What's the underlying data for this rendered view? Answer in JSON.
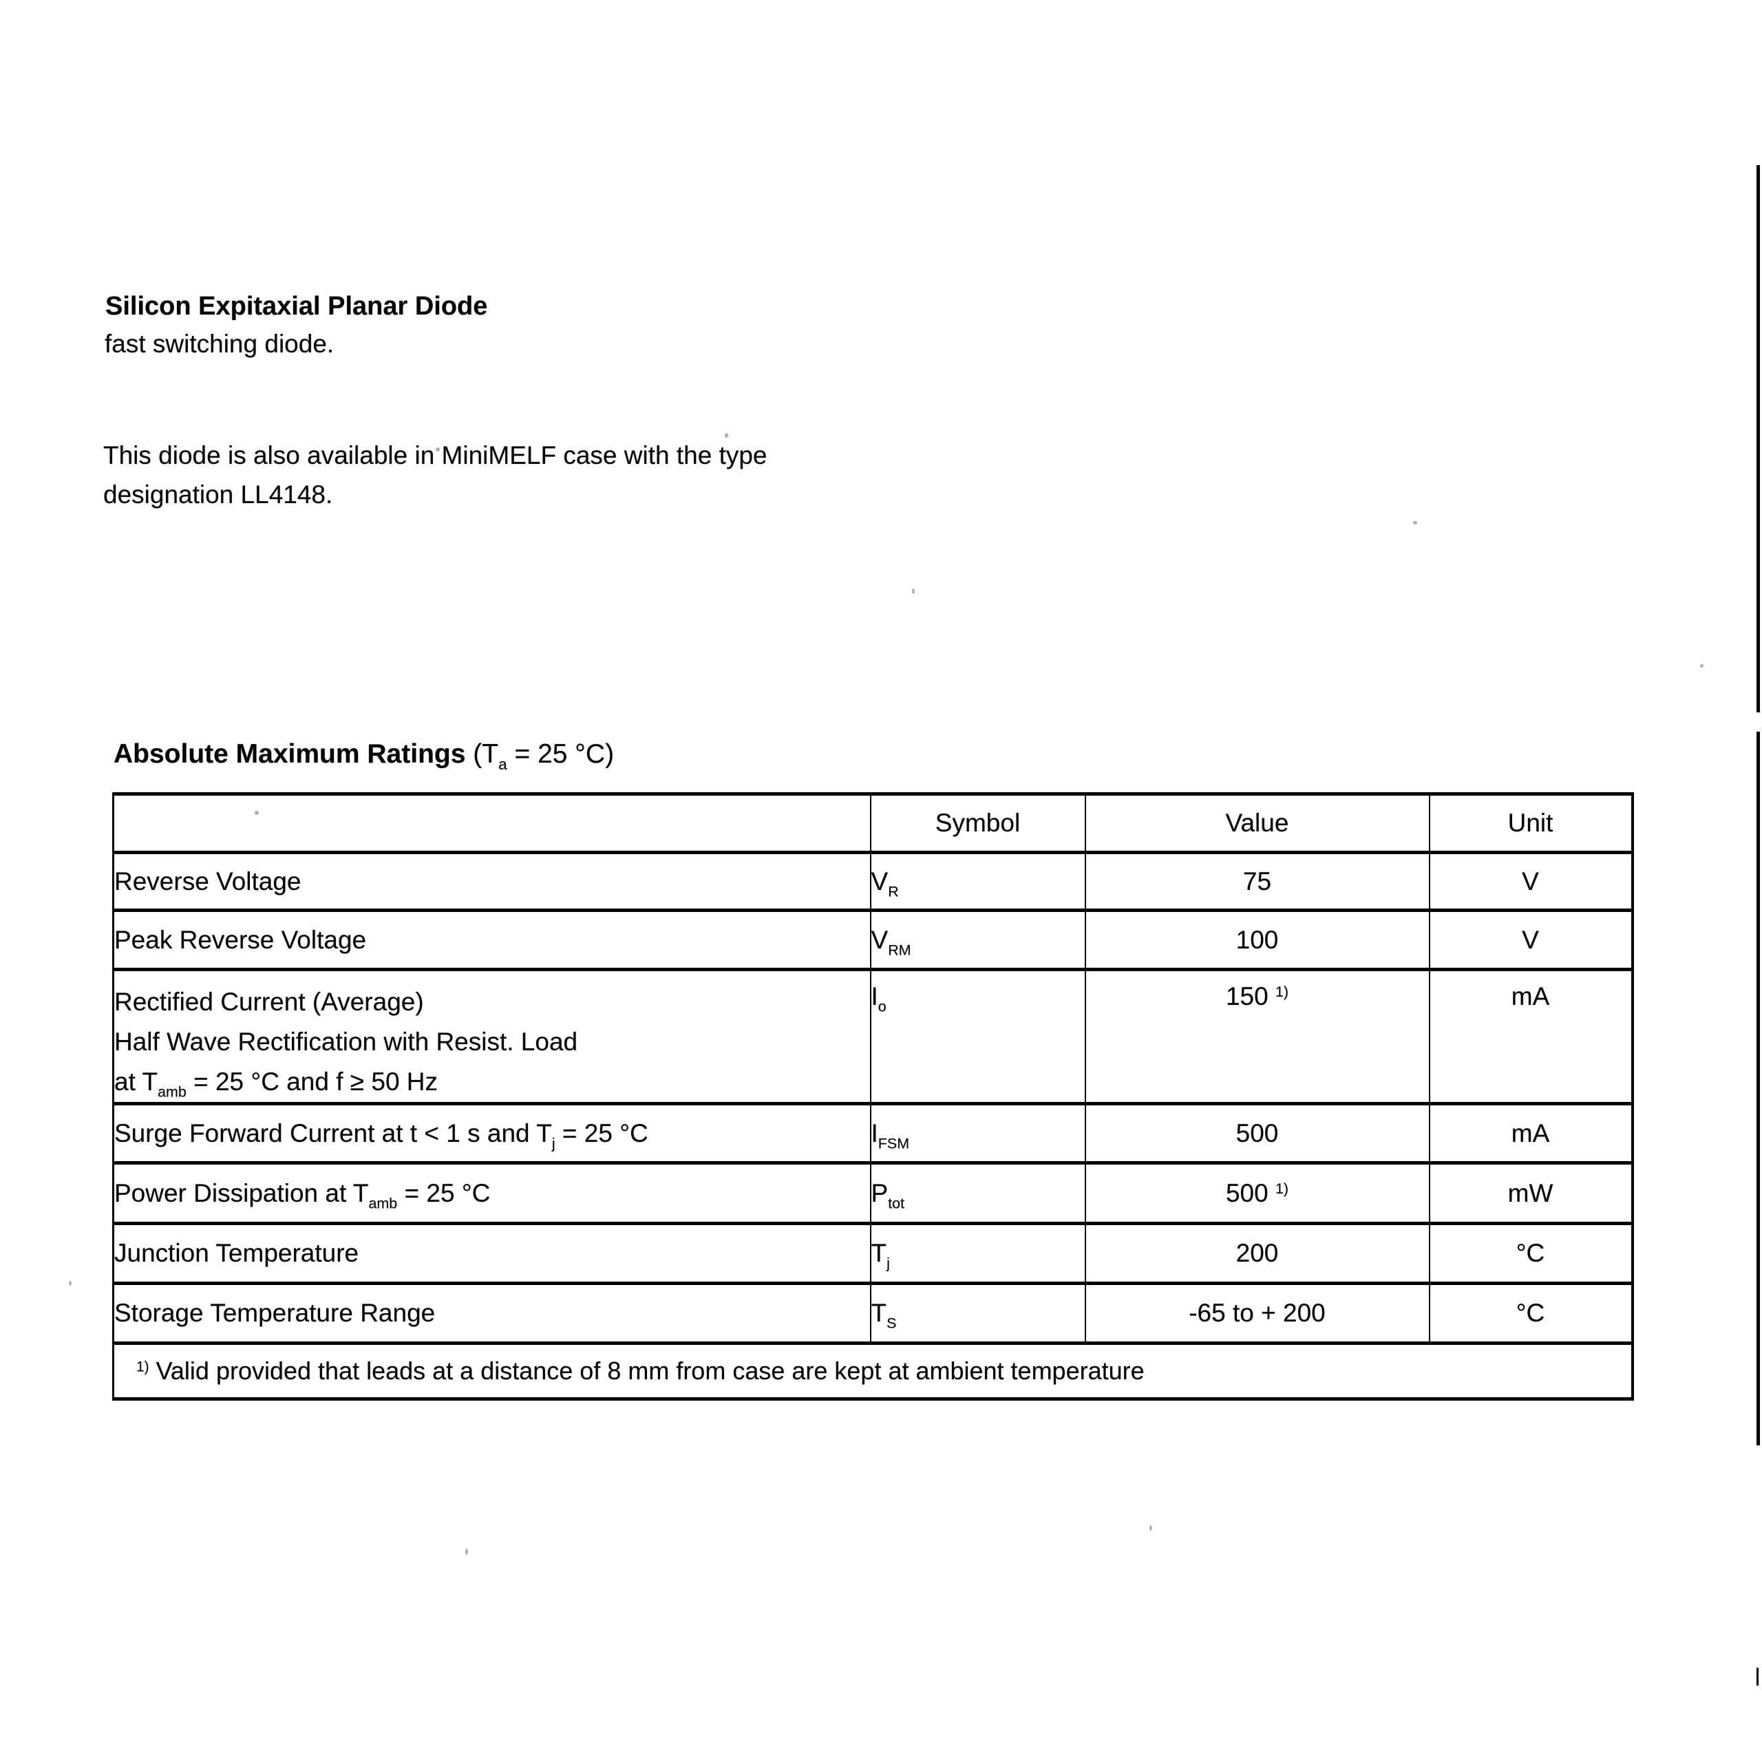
{
  "doc": {
    "title": "Silicon Expitaxial Planar Diode",
    "subtitle": "fast switching diode.",
    "paragraph": [
      "This diode is also available in MiniMELF case with the type",
      "designation LL4148."
    ]
  },
  "ratings": {
    "heading": "Absolute Maximum Ratings",
    "condition": [
      {
        "t": " (T"
      },
      {
        "t": "a",
        "s": "sub"
      },
      {
        "t": " = 25 °C)"
      }
    ]
  },
  "table": {
    "columns": [
      "",
      "Symbol",
      "Value",
      "Unit"
    ],
    "rows": [
      {
        "parameter": [
          {
            "t": "Reverse Voltage"
          }
        ],
        "symbol": [
          {
            "t": "V"
          },
          {
            "t": "R",
            "s": "sub"
          }
        ],
        "value": [
          {
            "t": "75"
          }
        ],
        "unit": [
          {
            "t": "V"
          }
        ]
      },
      {
        "parameter": [
          {
            "t": "Peak Reverse Voltage"
          }
        ],
        "symbol": [
          {
            "t": "V"
          },
          {
            "t": "RM",
            "s": "sub"
          }
        ],
        "value": [
          {
            "t": "100"
          }
        ],
        "unit": [
          {
            "t": "V"
          }
        ]
      },
      {
        "parameter": [
          {
            "t": "Rectified Current (Average)"
          },
          {
            "br": true
          },
          {
            "t": "Half Wave Rectification with Resist. Load"
          },
          {
            "br": true
          },
          {
            "t": "at T"
          },
          {
            "t": "amb",
            "s": "sub"
          },
          {
            "t": " = 25 °C and f ≥ 50 Hz"
          }
        ],
        "symbol": [
          {
            "t": "I"
          },
          {
            "t": "o",
            "s": "sub"
          }
        ],
        "value": [
          {
            "t": "150 "
          },
          {
            "t": "1)",
            "s": "sup"
          }
        ],
        "unit": [
          {
            "t": "mA"
          }
        ]
      },
      {
        "parameter": [
          {
            "t": "Surge Forward Current at t < 1 s and T"
          },
          {
            "t": "j",
            "s": "sub"
          },
          {
            "t": " = 25 °C"
          }
        ],
        "symbol": [
          {
            "t": "I"
          },
          {
            "t": "FSM",
            "s": "sub"
          }
        ],
        "value": [
          {
            "t": "500"
          }
        ],
        "unit": [
          {
            "t": "mA"
          }
        ]
      },
      {
        "parameter": [
          {
            "t": "Power Dissipation at T"
          },
          {
            "t": "amb",
            "s": "sub"
          },
          {
            "t": " = 25 °C"
          }
        ],
        "symbol": [
          {
            "t": "P"
          },
          {
            "t": "tot",
            "s": "sub"
          }
        ],
        "value": [
          {
            "t": "500 "
          },
          {
            "t": "1)",
            "s": "sup"
          }
        ],
        "unit": [
          {
            "t": "mW"
          }
        ]
      },
      {
        "parameter": [
          {
            "t": "Junction Temperature"
          }
        ],
        "symbol": [
          {
            "t": "T"
          },
          {
            "t": "j",
            "s": "sub"
          }
        ],
        "value": [
          {
            "t": "200"
          }
        ],
        "unit": [
          {
            "t": "°C"
          }
        ]
      },
      {
        "parameter": [
          {
            "t": "Storage Temperature Range"
          }
        ],
        "symbol": [
          {
            "t": "T"
          },
          {
            "t": "S",
            "s": "sub"
          }
        ],
        "value": [
          {
            "t": "-65 to + 200"
          }
        ],
        "unit": [
          {
            "t": "°C"
          }
        ]
      }
    ],
    "footnote": [
      {
        "t": "1)",
        "s": "sup"
      },
      {
        "t": " Valid provided that leads at a distance of 8 mm from case are kept at ambient temperature"
      }
    ]
  }
}
